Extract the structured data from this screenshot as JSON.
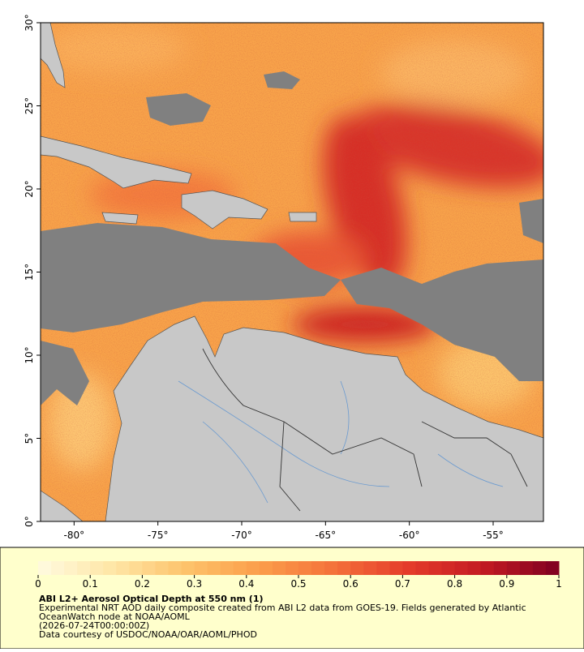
{
  "map": {
    "title": "ABI L2+ Aerosol Optical Depth at 550 nm (1)",
    "description": [
      "Experimental NRT AOD daily composite created from ABI L2 data from GOES-19. Fields generated by Atlantic",
      "OceanWatch node at NOAA/AOML",
      "(2026-07-24T00:00:00Z)",
      "Data courtesy of USDOC/NOAA/OAR/AOML/PHOD"
    ],
    "xlim": [
      -82,
      -52
    ],
    "ylim": [
      0,
      30
    ],
    "xticks": [
      {
        "value": -80,
        "label": "-80°"
      },
      {
        "value": -75,
        "label": "-75°"
      },
      {
        "value": -70,
        "label": "-70°"
      },
      {
        "value": -65,
        "label": "-65°"
      },
      {
        "value": -60,
        "label": "-60°"
      },
      {
        "value": -55,
        "label": "-55°"
      }
    ],
    "yticks": [
      {
        "value": 0,
        "label": "0°"
      },
      {
        "value": 5,
        "label": "5°"
      },
      {
        "value": 10,
        "label": "10°"
      },
      {
        "value": 15,
        "label": "15°"
      },
      {
        "value": 20,
        "label": "20°"
      },
      {
        "value": 25,
        "label": "25°"
      },
      {
        "value": 30,
        "label": "30°"
      }
    ],
    "colorbar": {
      "range": [
        0,
        1
      ],
      "ticks": [
        0,
        0.1,
        0.2,
        0.3,
        0.4,
        0.5,
        0.6,
        0.7,
        0.8,
        0.9,
        1
      ],
      "colors": [
        "#fffbe0",
        "#fee6a6",
        "#fdc26a",
        "#fb9d4a",
        "#f4703a",
        "#e43a2a",
        "#c21a22",
        "#7e0021"
      ]
    }
  }
}
